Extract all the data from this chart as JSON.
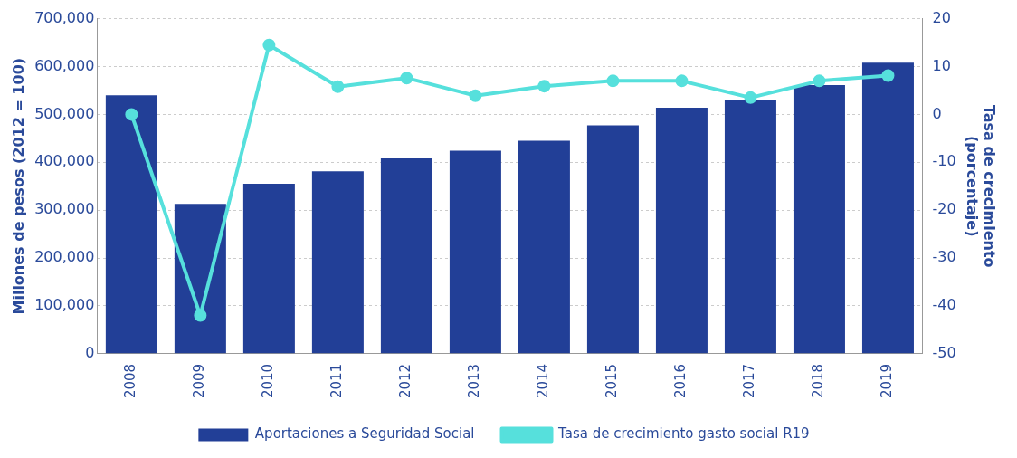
{
  "chart_data": {
    "type": "bar",
    "categories": [
      "2008",
      "2009",
      "2010",
      "2011",
      "2012",
      "2013",
      "2014",
      "2015",
      "2016",
      "2017",
      "2018",
      "2019"
    ],
    "series": [
      {
        "name": "Aportaciones a Seguridad Social",
        "color": "#223f97",
        "values": [
          540000,
          313000,
          355000,
          381000,
          408000,
          424000,
          445000,
          477000,
          514000,
          530000,
          561000,
          608000
        ]
      },
      {
        "name": "Tasa de crecimiento gasto social R19",
        "type": "line",
        "axis": "y2",
        "color": "#56e0dc",
        "marker": "circle",
        "values": [
          0,
          -42,
          14.5,
          5.8,
          7.6,
          3.9,
          5.9,
          7,
          7,
          3.5,
          7,
          8.1
        ]
      }
    ],
    "ylabel": "Millones de pesos (2012 = 100)",
    "y2label": "Tasa de crecimiento (porcentaje)",
    "ylim": [
      0,
      700000
    ],
    "yticks": [
      0,
      {
        "value": 100000,
        "label": "100,000"
      },
      {
        "value": 200000,
        "label": "200,000"
      },
      {
        "value": 300000,
        "label": "300,000"
      },
      {
        "value": 400000,
        "label": "400,000"
      },
      {
        "value": 500000,
        "label": "500,000"
      },
      {
        "value": 600000,
        "label": "600,000"
      },
      {
        "value": 700000,
        "label": "700,000"
      }
    ],
    "y2lim": [
      -50,
      20
    ],
    "y2ticks": [
      -50,
      -40,
      -30,
      -20,
      -10,
      0,
      10,
      20
    ],
    "grid": "y",
    "legend": "bottom"
  }
}
